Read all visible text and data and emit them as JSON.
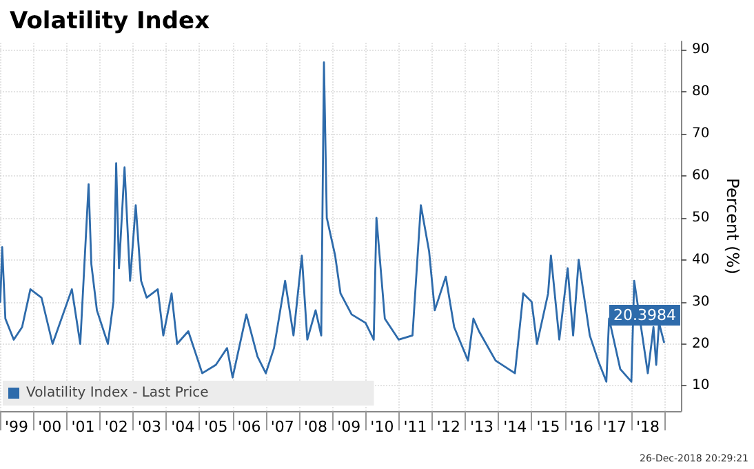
{
  "chart_data": {
    "type": "line",
    "title": "Volatility Index",
    "ylabel": "Percent (%)",
    "annotations": [
      "26-Dec-2018 20:29:21"
    ],
    "x": [
      "1999-01-04",
      "1999-01-25",
      "1999-03",
      "1999-06",
      "1999-09",
      "1999-12",
      "2000-04",
      "2000-08",
      "2001-03",
      "2001-06",
      "2001-09",
      "2001-10",
      "2001-12",
      "2002-04",
      "2002-06",
      "2002-07",
      "2002-08",
      "2002-10",
      "2002-12",
      "2003-02",
      "2003-04",
      "2003-06",
      "2003-10",
      "2003-12",
      "2004-03",
      "2004-05",
      "2004-09",
      "2005-02",
      "2005-07",
      "2005-11",
      "2006-01",
      "2006-06",
      "2006-10",
      "2007-01",
      "2007-04",
      "2007-08",
      "2007-11",
      "2008-02",
      "2008-04",
      "2008-07",
      "2008-09",
      "2008-10",
      "2008-11",
      "2009-02",
      "2009-04",
      "2009-08",
      "2010-01",
      "2010-04",
      "2010-05",
      "2010-08",
      "2011-01",
      "2011-06",
      "2011-09",
      "2011-12",
      "2012-02",
      "2012-06",
      "2012-09",
      "2013-02",
      "2013-04",
      "2013-06",
      "2013-12",
      "2014-07",
      "2014-10",
      "2015-01",
      "2015-03",
      "2015-07",
      "2015-08",
      "2015-11",
      "2016-02",
      "2016-04",
      "2016-06",
      "2016-10",
      "2017-01",
      "2017-04",
      "2017-05",
      "2017-09",
      "2018-01",
      "2018-02",
      "2018-05",
      "2018-07",
      "2018-09",
      "2018-10",
      "2018-11",
      "2018-12-26"
    ],
    "series": [
      {
        "name": "Volatility Index - Last Price",
        "color": "#2e6bab",
        "values": [
          30,
          43,
          26,
          21,
          24,
          33,
          31,
          20,
          33,
          20,
          58,
          39,
          28,
          20,
          30,
          63,
          38,
          62,
          35,
          53,
          35,
          31,
          33,
          22,
          32,
          20,
          23,
          13,
          15,
          19,
          12,
          27,
          17,
          13,
          19,
          35,
          22,
          41,
          21,
          28,
          22,
          87,
          50,
          41,
          32,
          27,
          25,
          21,
          50,
          26,
          21,
          22,
          53,
          42,
          28,
          36,
          24,
          16,
          26,
          23,
          16,
          13,
          32,
          30,
          20,
          32,
          41,
          21,
          38,
          22,
          40,
          22,
          16,
          11,
          26,
          14,
          11,
          35,
          22,
          13,
          24,
          15,
          25,
          20.3984
        ],
        "value_labels": [
          null,
          null,
          null,
          null,
          null,
          null,
          null,
          null,
          null,
          null,
          null,
          null,
          null,
          null,
          null,
          null,
          null,
          null,
          null,
          null,
          null,
          null,
          null,
          null,
          null,
          null,
          null,
          null,
          null,
          null,
          null,
          null,
          null,
          null,
          null,
          null,
          null,
          null,
          null,
          null,
          null,
          null,
          null,
          null,
          null,
          null,
          null,
          null,
          null,
          null,
          null,
          null,
          null,
          null,
          null,
          null,
          null,
          null,
          null,
          null,
          null,
          null,
          null,
          null,
          null,
          null,
          null,
          null,
          null,
          null,
          null,
          null,
          null,
          null,
          null,
          null,
          null,
          null,
          null,
          null,
          null,
          null,
          null,
          "20.3984"
        ]
      }
    ],
    "xlim": [
      "1999-01-01",
      "2019-06-30"
    ],
    "xticks": [
      {
        "value": "1999-01-01",
        "label": null
      },
      {
        "value": "1999-07-02",
        "label": "'99"
      },
      {
        "value": "2000-01-01",
        "label": null
      },
      {
        "value": "2000-07-02",
        "label": "'00"
      },
      {
        "value": "2001-01-01",
        "label": null
      },
      {
        "value": "2001-07-02",
        "label": "'01"
      },
      {
        "value": "2002-01-01",
        "label": null
      },
      {
        "value": "2002-07-02",
        "label": "'02"
      },
      {
        "value": "2003-01-01",
        "label": null
      },
      {
        "value": "2003-07-02",
        "label": "'03"
      },
      {
        "value": "2004-01-01",
        "label": null
      },
      {
        "value": "2004-07-02",
        "label": "'04"
      },
      {
        "value": "2005-01-01",
        "label": null
      },
      {
        "value": "2005-07-02",
        "label": "'05"
      },
      {
        "value": "2006-01-01",
        "label": null
      },
      {
        "value": "2006-07-02",
        "label": "'06"
      },
      {
        "value": "2007-01-01",
        "label": null
      },
      {
        "value": "2007-07-02",
        "label": "'07"
      },
      {
        "value": "2008-01-01",
        "label": null
      },
      {
        "value": "2008-07-02",
        "label": "'08"
      },
      {
        "value": "2009-01-01",
        "label": null
      },
      {
        "value": "2009-07-02",
        "label": "'09"
      },
      {
        "value": "2010-01-01",
        "label": null
      },
      {
        "value": "2010-07-02",
        "label": "'10"
      },
      {
        "value": "2011-01-01",
        "label": null
      },
      {
        "value": "2011-07-02",
        "label": "'11"
      },
      {
        "value": "2012-01-01",
        "label": null
      },
      {
        "value": "2012-07-02",
        "label": "'12"
      },
      {
        "value": "2013-01-01",
        "label": null
      },
      {
        "value": "2013-07-02",
        "label": "'13"
      },
      {
        "value": "2014-01-01",
        "label": null
      },
      {
        "value": "2014-07-02",
        "label": "'14"
      },
      {
        "value": "2015-01-01",
        "label": null
      },
      {
        "value": "2015-07-02",
        "label": "'15"
      },
      {
        "value": "2016-01-01",
        "label": null
      },
      {
        "value": "2016-07-02",
        "label": "'16"
      },
      {
        "value": "2017-01-01",
        "label": null
      },
      {
        "value": "2017-07-02",
        "label": "'17"
      },
      {
        "value": "2018-01-01",
        "label": null
      },
      {
        "value": "2018-07-02",
        "label": "'18"
      },
      {
        "value": "2019-01-01",
        "label": null
      }
    ],
    "ylim": [
      4,
      92
    ],
    "yticks": [
      10,
      20,
      30,
      40,
      50,
      60,
      70,
      80,
      90
    ],
    "grid": true,
    "legend": "bottom left",
    "marker": "none",
    "line_style": "solid"
  }
}
